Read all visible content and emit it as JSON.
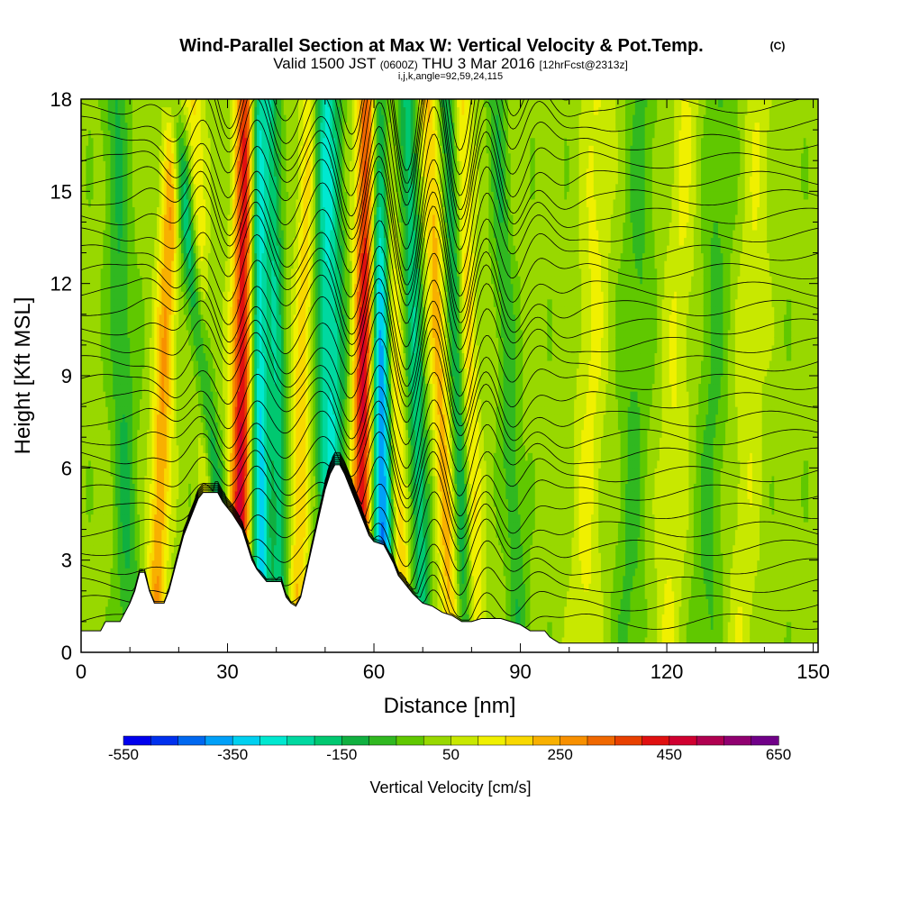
{
  "chart_data": {
    "type": "heatmap",
    "title": "Wind-Parallel Section at Max W: Vertical Velocity & Pot.Temp.",
    "title_mark": "(C)",
    "subtitle_pre": "Valid 1500 JST",
    "subtitle_zulu": "(0600Z)",
    "subtitle_date": "THU 3 Mar 2016",
    "subtitle_fcst": "[12hrFcst@2313z]",
    "subtitle_indices": "i,j,k,angle=92,59,24,115",
    "xlabel": "Distance [nm]",
    "ylabel": "Height [Kft MSL]",
    "xlim": [
      0,
      151
    ],
    "ylim": [
      0,
      18
    ],
    "xticks": [
      "0",
      "30",
      "60",
      "90",
      "120",
      "150"
    ],
    "yticks": [
      "0",
      "3",
      "6",
      "9",
      "12",
      "15",
      "18"
    ],
    "colorbar": {
      "label": "Vertical Velocity [cm/s]",
      "tick_labels": [
        "-550",
        "-350",
        "-150",
        "50",
        "250",
        "450",
        "650"
      ],
      "colors": [
        "#0000ee",
        "#0030ee",
        "#0068f0",
        "#00a0f8",
        "#00d0f0",
        "#00e8d0",
        "#00d8a0",
        "#00c870",
        "#10b040",
        "#30b820",
        "#60c800",
        "#98d800",
        "#c8e800",
        "#f0f000",
        "#f8d800",
        "#f8b000",
        "#f89000",
        "#f06800",
        "#e84000",
        "#e01010",
        "#d00030",
        "#b00050",
        "#900070",
        "#700088"
      ],
      "min": -550,
      "max": 650
    },
    "terrain_kft": [
      [
        0,
        0.7
      ],
      [
        4,
        0.7
      ],
      [
        5,
        1.0
      ],
      [
        8,
        1.0
      ],
      [
        9,
        1.3
      ],
      [
        10,
        1.6
      ],
      [
        11,
        2.0
      ],
      [
        12,
        2.6
      ],
      [
        13,
        2.6
      ],
      [
        14,
        2.0
      ],
      [
        15,
        1.6
      ],
      [
        17,
        1.6
      ],
      [
        18,
        2.0
      ],
      [
        19,
        2.6
      ],
      [
        20,
        3.2
      ],
      [
        21,
        3.8
      ],
      [
        22,
        4.2
      ],
      [
        23,
        4.6
      ],
      [
        24,
        5.0
      ],
      [
        25,
        5.2
      ],
      [
        28,
        5.2
      ],
      [
        29,
        4.9
      ],
      [
        31,
        4.5
      ],
      [
        33,
        4.0
      ],
      [
        34,
        3.5
      ],
      [
        35,
        3.0
      ],
      [
        36,
        2.7
      ],
      [
        37,
        2.5
      ],
      [
        38,
        2.3
      ],
      [
        41,
        2.3
      ],
      [
        42,
        1.8
      ],
      [
        43,
        1.6
      ],
      [
        44,
        1.5
      ],
      [
        45,
        1.8
      ],
      [
        46,
        2.5
      ],
      [
        47,
        3.2
      ],
      [
        48,
        3.9
      ],
      [
        49,
        4.6
      ],
      [
        50,
        5.3
      ],
      [
        51,
        5.8
      ],
      [
        52,
        6.1
      ],
      [
        53,
        6.1
      ],
      [
        54,
        5.8
      ],
      [
        56,
        5.0
      ],
      [
        58,
        4.2
      ],
      [
        59,
        3.8
      ],
      [
        60,
        3.6
      ],
      [
        62,
        3.5
      ],
      [
        63,
        3.2
      ],
      [
        64,
        2.9
      ],
      [
        65,
        2.5
      ],
      [
        66,
        2.3
      ],
      [
        67,
        2.1
      ],
      [
        68,
        1.9
      ],
      [
        70,
        1.6
      ],
      [
        72,
        1.5
      ],
      [
        74,
        1.3
      ],
      [
        76,
        1.2
      ],
      [
        77,
        1.1
      ],
      [
        78,
        1.0
      ],
      [
        80,
        1.0
      ],
      [
        82,
        1.1
      ],
      [
        86,
        1.1
      ],
      [
        88,
        1.0
      ],
      [
        90,
        0.9
      ],
      [
        92,
        0.7
      ],
      [
        95,
        0.7
      ],
      [
        96,
        0.5
      ],
      [
        97,
        0.4
      ],
      [
        98,
        0.3
      ],
      [
        102,
        0.3
      ],
      [
        151,
        0.3
      ]
    ],
    "updraft_bands": [
      {
        "x_base": 32,
        "x_top": 34,
        "w": 2.2,
        "amp": 430
      },
      {
        "x_base": 57,
        "x_top": 59,
        "w": 2.2,
        "amp": 460
      },
      {
        "x_base": 15,
        "x_top": 19,
        "w": 2.0,
        "amp": 230
      },
      {
        "x_base": 44,
        "x_top": 47,
        "w": 2.0,
        "amp": 180
      },
      {
        "x_base": 66,
        "x_top": 62,
        "w": 2.0,
        "amp": 200
      },
      {
        "x_base": 76,
        "x_top": 71,
        "w": 2.0,
        "amp": 200
      },
      {
        "x_base": 81,
        "x_top": 78,
        "w": 1.8,
        "amp": 150
      },
      {
        "x_base": 27,
        "x_top": 23,
        "w": 1.8,
        "amp": 140
      },
      {
        "x_base": 103,
        "x_top": 106,
        "w": 3.0,
        "amp": 90
      },
      {
        "x_base": 120,
        "x_top": 124,
        "w": 3.0,
        "amp": 80
      },
      {
        "x_base": 135,
        "x_top": 139,
        "w": 3.0,
        "amp": 70
      }
    ],
    "downdraft_bands": [
      {
        "x_base": 37,
        "x_top": 36,
        "w": 1.8,
        "amp": -340
      },
      {
        "x_base": 62,
        "x_top": 61,
        "w": 2.2,
        "amp": -460
      },
      {
        "x_base": 52,
        "x_top": 50,
        "w": 3.0,
        "amp": -280
      },
      {
        "x_base": 31,
        "x_top": 19,
        "w": 1.8,
        "amp": -230
      },
      {
        "x_base": 41,
        "x_top": 39,
        "w": 1.8,
        "amp": -200
      },
      {
        "x_base": 70,
        "x_top": 67,
        "w": 2.0,
        "amp": -200
      },
      {
        "x_base": 79,
        "x_top": 75,
        "w": 1.8,
        "amp": -180
      },
      {
        "x_base": 90,
        "x_top": 85,
        "w": 2.0,
        "amp": -110
      },
      {
        "x_base": 10,
        "x_top": 7,
        "w": 2.5,
        "amp": -120
      },
      {
        "x_base": 112,
        "x_top": 115,
        "w": 3.0,
        "amp": -80
      },
      {
        "x_base": 128,
        "x_top": 131,
        "w": 3.0,
        "amp": -80
      }
    ],
    "theta_isolines": {
      "count": 30,
      "base_kft": 1.0,
      "spacing_kft": 0.6,
      "wave_centers": [
        33,
        58,
        70,
        80
      ],
      "wave_amp_kft": 0.9
    }
  }
}
